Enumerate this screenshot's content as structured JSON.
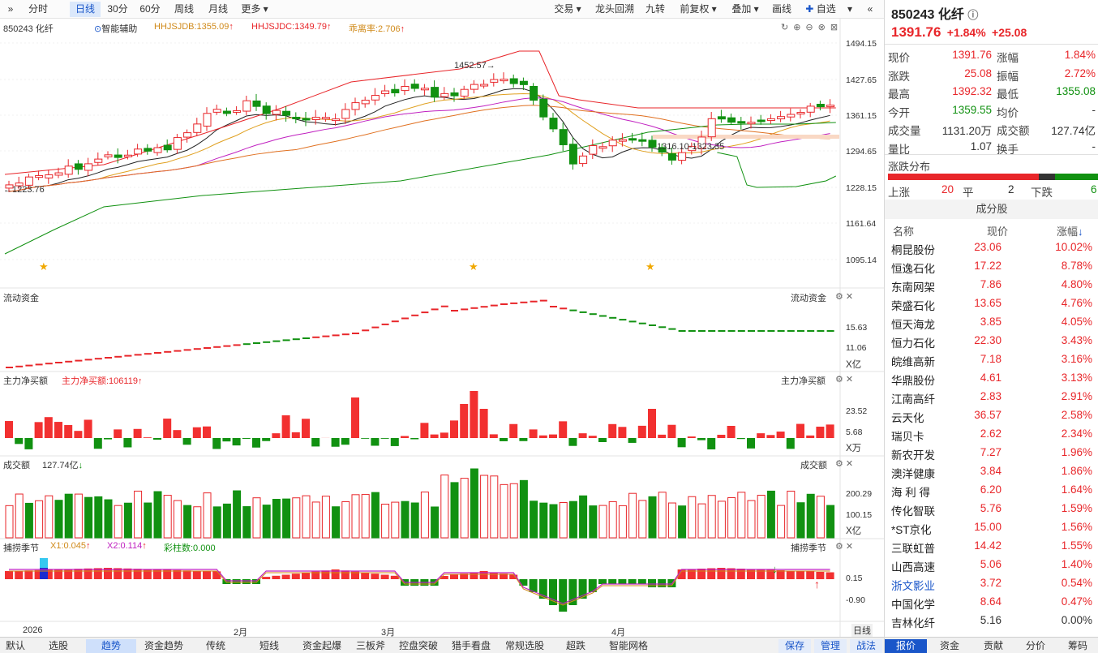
{
  "toolbar": {
    "left": [
      "分时",
      "日线",
      "30分",
      "60分",
      "周线",
      "月线",
      "更多"
    ],
    "selected": "日线",
    "right": [
      "交易",
      "龙头回溯",
      "九转",
      "前复权",
      "叠加",
      "画线",
      "自选"
    ]
  },
  "legend": {
    "name": "850243 化纤",
    "assist": "智能辅助",
    "jdb": "HHJSJDB:1355.09",
    "jdc": "HHJSJDC:1349.79",
    "lr": "乖离率:2.706"
  },
  "price_axis": [
    "1494.15",
    "1427.65",
    "1361.15",
    "1294.65",
    "1228.15",
    "1161.64",
    "1095.14"
  ],
  "annotations": {
    "high": "1452.57",
    "low": "1223.76",
    "range": "1316.10-1323.35"
  },
  "panels": {
    "flow": {
      "title": "流动资金",
      "ticks": [
        "15.63",
        "11.06"
      ],
      "unit": "X亿"
    },
    "net": {
      "title": "主力净买额",
      "value": "主力净买额:106119",
      "ticks": [
        "23.52",
        "5.68"
      ],
      "unit": "X万"
    },
    "vol": {
      "title": "成交额",
      "value": "127.74亿",
      "ticks": [
        "200.29",
        "100.15"
      ],
      "unit": "X亿"
    },
    "season": {
      "title": "捕捞季节",
      "x1": "X1:0.045",
      "x2": "X2:0.114",
      "bars": "彩柱数:0.000",
      "ticks": [
        "0.15",
        "-0.90"
      ]
    }
  },
  "date_axis": [
    "2026",
    "2月",
    "3月",
    "4月"
  ],
  "date_mode": "日线",
  "bottom_tabs": [
    "默认",
    "选股",
    "趋势",
    "资金趋势",
    "传统",
    "短线",
    "资金起爆",
    "三板斧",
    "控盘突破",
    "猎手看盘",
    "常规选股",
    "超跌",
    "智能网格"
  ],
  "bottom_selected": "趋势",
  "bottom_right": [
    "保存",
    "管理",
    "战法"
  ],
  "right_panel": {
    "code": "850243",
    "name": "化纤",
    "price": "1391.76",
    "pct": "+1.84%",
    "chg": "+25.08",
    "stats": [
      [
        "现价",
        "1391.76",
        "涨幅",
        "1.84%"
      ],
      [
        "涨跌",
        "25.08",
        "振幅",
        "2.72%"
      ],
      [
        "最高",
        "1392.32",
        "最低",
        "1355.08"
      ],
      [
        "今开",
        "1359.55",
        "均价",
        "-"
      ],
      [
        "成交量",
        "1131.20万",
        "成交额",
        "127.74亿"
      ],
      [
        "量比",
        "1.07",
        "换手",
        "-"
      ]
    ],
    "dist_title": "涨跌分布",
    "dist": {
      "up_label": "上涨",
      "up": "20",
      "flat_label": "平",
      "flat": "2",
      "down_label": "下跌",
      "down": "6"
    },
    "comp_title": "成分股",
    "comp_headers": [
      "名称",
      "现价",
      "涨幅"
    ],
    "components": [
      [
        "桐昆股份",
        "23.06",
        "10.02%"
      ],
      [
        "恒逸石化",
        "17.22",
        "8.78%"
      ],
      [
        "东南网架",
        "7.86",
        "4.80%"
      ],
      [
        "荣盛石化",
        "13.65",
        "4.76%"
      ],
      [
        "恒天海龙",
        "3.85",
        "4.05%"
      ],
      [
        "恒力石化",
        "22.30",
        "3.43%"
      ],
      [
        "皖维高新",
        "7.18",
        "3.16%"
      ],
      [
        "华鼎股份",
        "4.61",
        "3.13%"
      ],
      [
        "江南高纤",
        "2.83",
        "2.91%"
      ],
      [
        "云天化",
        "36.57",
        "2.58%"
      ],
      [
        "瑞贝卡",
        "2.62",
        "2.34%"
      ],
      [
        "新农开发",
        "7.27",
        "1.96%"
      ],
      [
        "澳洋健康",
        "3.84",
        "1.86%"
      ],
      [
        "海 利 得",
        "6.20",
        "1.64%"
      ],
      [
        "传化智联",
        "5.76",
        "1.59%"
      ],
      [
        "*ST京化",
        "15.00",
        "1.56%"
      ],
      [
        "三联虹普",
        "14.42",
        "1.55%"
      ],
      [
        "山西高速",
        "5.06",
        "1.40%"
      ],
      [
        "浙文影业",
        "3.72",
        "0.54%"
      ],
      [
        "中国化学",
        "8.64",
        "0.47%"
      ],
      [
        "吉林化纤",
        "5.16",
        "0.00%"
      ]
    ],
    "bottom_tabs": [
      "报价",
      "资金",
      "贡献",
      "分价",
      "筹码"
    ]
  },
  "colors": {
    "up": "#e8262a",
    "down": "#119111",
    "accent": "#1a56c9"
  }
}
